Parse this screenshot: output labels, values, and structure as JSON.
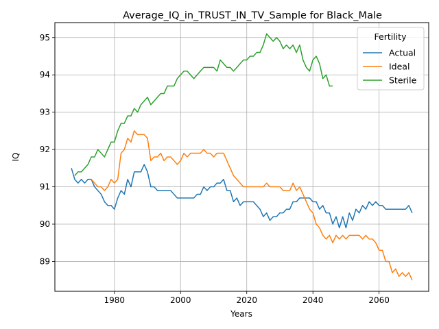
{
  "chart_data": {
    "type": "line",
    "title": "Average_IQ_in_TRUST_IN_TV_Sample for Black_Male",
    "xlabel": "Years",
    "ylabel": "IQ",
    "xlim": [
      1962,
      2075
    ],
    "ylim": [
      88.2,
      95.4
    ],
    "xticks": [
      1980,
      2000,
      2020,
      2040,
      2060
    ],
    "yticks": [
      89,
      90,
      91,
      92,
      93,
      94,
      95
    ],
    "grid": true,
    "legend": {
      "title": "Fertility",
      "position": "top-right"
    },
    "colors": {
      "Actual": "#1f77b4",
      "Ideal": "#ff7f0e",
      "Sterile": "#2ca02c"
    },
    "series": [
      {
        "name": "Actual",
        "points": [
          [
            1967,
            91.5
          ],
          [
            1968,
            91.2
          ],
          [
            1969,
            91.1
          ],
          [
            1970,
            91.2
          ],
          [
            1971,
            91.1
          ],
          [
            1972,
            91.2
          ],
          [
            1973,
            91.2
          ],
          [
            1974,
            91.0
          ],
          [
            1975,
            90.9
          ],
          [
            1976,
            90.8
          ],
          [
            1977,
            90.6
          ],
          [
            1978,
            90.5
          ],
          [
            1979,
            90.5
          ],
          [
            1980,
            90.4
          ],
          [
            1981,
            90.7
          ],
          [
            1982,
            90.9
          ],
          [
            1983,
            90.8
          ],
          [
            1984,
            91.2
          ],
          [
            1985,
            91.0
          ],
          [
            1986,
            91.4
          ],
          [
            1987,
            91.4
          ],
          [
            1988,
            91.4
          ],
          [
            1989,
            91.6
          ],
          [
            1990,
            91.4
          ],
          [
            1991,
            91.0
          ],
          [
            1992,
            91.0
          ],
          [
            1993,
            90.9
          ],
          [
            1994,
            90.9
          ],
          [
            1995,
            90.9
          ],
          [
            1996,
            90.9
          ],
          [
            1997,
            90.9
          ],
          [
            1998,
            90.8
          ],
          [
            1999,
            90.7
          ],
          [
            2000,
            90.7
          ],
          [
            2001,
            90.7
          ],
          [
            2002,
            90.7
          ],
          [
            2003,
            90.7
          ],
          [
            2004,
            90.7
          ],
          [
            2005,
            90.8
          ],
          [
            2006,
            90.8
          ],
          [
            2007,
            91.0
          ],
          [
            2008,
            90.9
          ],
          [
            2009,
            91.0
          ],
          [
            2010,
            91.0
          ],
          [
            2011,
            91.1
          ],
          [
            2012,
            91.1
          ],
          [
            2013,
            91.2
          ],
          [
            2014,
            90.9
          ],
          [
            2015,
            90.9
          ],
          [
            2016,
            90.6
          ],
          [
            2017,
            90.7
          ],
          [
            2018,
            90.5
          ],
          [
            2019,
            90.6
          ],
          [
            2020,
            90.6
          ],
          [
            2021,
            90.6
          ],
          [
            2022,
            90.6
          ],
          [
            2023,
            90.5
          ],
          [
            2024,
            90.4
          ],
          [
            2025,
            90.2
          ],
          [
            2026,
            90.3
          ],
          [
            2027,
            90.1
          ],
          [
            2028,
            90.2
          ],
          [
            2029,
            90.2
          ],
          [
            2030,
            90.3
          ],
          [
            2031,
            90.3
          ],
          [
            2032,
            90.4
          ],
          [
            2033,
            90.4
          ],
          [
            2034,
            90.6
          ],
          [
            2035,
            90.6
          ],
          [
            2036,
            90.7
          ],
          [
            2037,
            90.7
          ],
          [
            2038,
            90.7
          ],
          [
            2039,
            90.7
          ],
          [
            2040,
            90.6
          ],
          [
            2041,
            90.6
          ],
          [
            2042,
            90.4
          ],
          [
            2043,
            90.5
          ],
          [
            2044,
            90.3
          ],
          [
            2045,
            90.3
          ],
          [
            2046,
            90.0
          ],
          [
            2047,
            90.2
          ],
          [
            2048,
            89.9
          ],
          [
            2049,
            90.2
          ],
          [
            2050,
            89.9
          ],
          [
            2051,
            90.3
          ],
          [
            2052,
            90.1
          ],
          [
            2053,
            90.4
          ],
          [
            2054,
            90.3
          ],
          [
            2055,
            90.5
          ],
          [
            2056,
            90.4
          ],
          [
            2057,
            90.6
          ],
          [
            2058,
            90.5
          ],
          [
            2059,
            90.6
          ],
          [
            2060,
            90.5
          ],
          [
            2061,
            90.5
          ],
          [
            2062,
            90.4
          ],
          [
            2063,
            90.4
          ],
          [
            2064,
            90.4
          ],
          [
            2065,
            90.4
          ],
          [
            2066,
            90.4
          ],
          [
            2067,
            90.4
          ],
          [
            2068,
            90.4
          ],
          [
            2069,
            90.5
          ],
          [
            2070,
            90.3
          ]
        ]
      },
      {
        "name": "Ideal",
        "points": [
          [
            1973,
            91.2
          ],
          [
            1974,
            91.1
          ],
          [
            1975,
            91.0
          ],
          [
            1976,
            91.0
          ],
          [
            1977,
            90.9
          ],
          [
            1978,
            91.0
          ],
          [
            1979,
            91.2
          ],
          [
            1980,
            91.1
          ],
          [
            1981,
            91.2
          ],
          [
            1982,
            91.9
          ],
          [
            1983,
            92.0
          ],
          [
            1984,
            92.3
          ],
          [
            1985,
            92.2
          ],
          [
            1986,
            92.5
          ],
          [
            1987,
            92.4
          ],
          [
            1988,
            92.4
          ],
          [
            1989,
            92.4
          ],
          [
            1990,
            92.3
          ],
          [
            1991,
            91.7
          ],
          [
            1992,
            91.8
          ],
          [
            1993,
            91.8
          ],
          [
            1994,
            91.9
          ],
          [
            1995,
            91.7
          ],
          [
            1996,
            91.8
          ],
          [
            1997,
            91.8
          ],
          [
            1998,
            91.7
          ],
          [
            1999,
            91.6
          ],
          [
            2000,
            91.7
          ],
          [
            2001,
            91.9
          ],
          [
            2002,
            91.8
          ],
          [
            2003,
            91.9
          ],
          [
            2004,
            91.9
          ],
          [
            2005,
            91.9
          ],
          [
            2006,
            91.9
          ],
          [
            2007,
            92.0
          ],
          [
            2008,
            91.9
          ],
          [
            2009,
            91.9
          ],
          [
            2010,
            91.8
          ],
          [
            2011,
            91.9
          ],
          [
            2012,
            91.9
          ],
          [
            2013,
            91.9
          ],
          [
            2014,
            91.7
          ],
          [
            2015,
            91.5
          ],
          [
            2016,
            91.3
          ],
          [
            2017,
            91.2
          ],
          [
            2018,
            91.1
          ],
          [
            2019,
            91.0
          ],
          [
            2020,
            91.0
          ],
          [
            2021,
            91.0
          ],
          [
            2022,
            91.0
          ],
          [
            2023,
            91.0
          ],
          [
            2024,
            91.0
          ],
          [
            2025,
            91.0
          ],
          [
            2026,
            91.1
          ],
          [
            2027,
            91.0
          ],
          [
            2028,
            91.0
          ],
          [
            2029,
            91.0
          ],
          [
            2030,
            91.0
          ],
          [
            2031,
            90.9
          ],
          [
            2032,
            90.9
          ],
          [
            2033,
            90.9
          ],
          [
            2034,
            91.1
          ],
          [
            2035,
            90.9
          ],
          [
            2036,
            91.0
          ],
          [
            2037,
            90.8
          ],
          [
            2038,
            90.6
          ],
          [
            2039,
            90.4
          ],
          [
            2040,
            90.3
          ],
          [
            2041,
            90.0
          ],
          [
            2042,
            89.9
          ],
          [
            2043,
            89.7
          ],
          [
            2044,
            89.6
          ],
          [
            2045,
            89.7
          ],
          [
            2046,
            89.5
          ],
          [
            2047,
            89.7
          ],
          [
            2048,
            89.6
          ],
          [
            2049,
            89.7
          ],
          [
            2050,
            89.6
          ],
          [
            2051,
            89.7
          ],
          [
            2052,
            89.7
          ],
          [
            2053,
            89.7
          ],
          [
            2054,
            89.7
          ],
          [
            2055,
            89.6
          ],
          [
            2056,
            89.7
          ],
          [
            2057,
            89.6
          ],
          [
            2058,
            89.6
          ],
          [
            2059,
            89.5
          ],
          [
            2060,
            89.3
          ],
          [
            2061,
            89.3
          ],
          [
            2062,
            89.0
          ],
          [
            2063,
            89.0
          ],
          [
            2064,
            88.7
          ],
          [
            2065,
            88.8
          ],
          [
            2066,
            88.6
          ],
          [
            2067,
            88.7
          ],
          [
            2068,
            88.6
          ],
          [
            2069,
            88.7
          ],
          [
            2070,
            88.5
          ]
        ]
      },
      {
        "name": "Sterile",
        "points": [
          [
            1968,
            91.3
          ],
          [
            1969,
            91.4
          ],
          [
            1970,
            91.4
          ],
          [
            1971,
            91.5
          ],
          [
            1972,
            91.6
          ],
          [
            1973,
            91.8
          ],
          [
            1974,
            91.8
          ],
          [
            1975,
            92.0
          ],
          [
            1976,
            91.9
          ],
          [
            1977,
            91.8
          ],
          [
            1978,
            92.0
          ],
          [
            1979,
            92.2
          ],
          [
            1980,
            92.2
          ],
          [
            1981,
            92.5
          ],
          [
            1982,
            92.7
          ],
          [
            1983,
            92.7
          ],
          [
            1984,
            92.9
          ],
          [
            1985,
            92.9
          ],
          [
            1986,
            93.1
          ],
          [
            1987,
            93.0
          ],
          [
            1988,
            93.2
          ],
          [
            1989,
            93.3
          ],
          [
            1990,
            93.4
          ],
          [
            1991,
            93.2
          ],
          [
            1992,
            93.3
          ],
          [
            1993,
            93.4
          ],
          [
            1994,
            93.5
          ],
          [
            1995,
            93.5
          ],
          [
            1996,
            93.7
          ],
          [
            1997,
            93.7
          ],
          [
            1998,
            93.7
          ],
          [
            1999,
            93.9
          ],
          [
            2000,
            94.0
          ],
          [
            2001,
            94.1
          ],
          [
            2002,
            94.1
          ],
          [
            2003,
            94.0
          ],
          [
            2004,
            93.9
          ],
          [
            2005,
            94.0
          ],
          [
            2006,
            94.1
          ],
          [
            2007,
            94.2
          ],
          [
            2008,
            94.2
          ],
          [
            2009,
            94.2
          ],
          [
            2010,
            94.2
          ],
          [
            2011,
            94.1
          ],
          [
            2012,
            94.4
          ],
          [
            2013,
            94.3
          ],
          [
            2014,
            94.2
          ],
          [
            2015,
            94.2
          ],
          [
            2016,
            94.1
          ],
          [
            2017,
            94.2
          ],
          [
            2018,
            94.3
          ],
          [
            2019,
            94.4
          ],
          [
            2020,
            94.4
          ],
          [
            2021,
            94.5
          ],
          [
            2022,
            94.5
          ],
          [
            2023,
            94.6
          ],
          [
            2024,
            94.6
          ],
          [
            2025,
            94.8
          ],
          [
            2026,
            95.1
          ],
          [
            2027,
            95.0
          ],
          [
            2028,
            94.9
          ],
          [
            2029,
            95.0
          ],
          [
            2030,
            94.9
          ],
          [
            2031,
            94.7
          ],
          [
            2032,
            94.8
          ],
          [
            2033,
            94.7
          ],
          [
            2034,
            94.8
          ],
          [
            2035,
            94.6
          ],
          [
            2036,
            94.8
          ],
          [
            2037,
            94.4
          ],
          [
            2038,
            94.2
          ],
          [
            2039,
            94.1
          ],
          [
            2040,
            94.4
          ],
          [
            2041,
            94.5
          ],
          [
            2042,
            94.3
          ],
          [
            2043,
            93.9
          ],
          [
            2044,
            94.0
          ],
          [
            2045,
            93.7
          ],
          [
            2046,
            93.7
          ]
        ]
      }
    ]
  }
}
